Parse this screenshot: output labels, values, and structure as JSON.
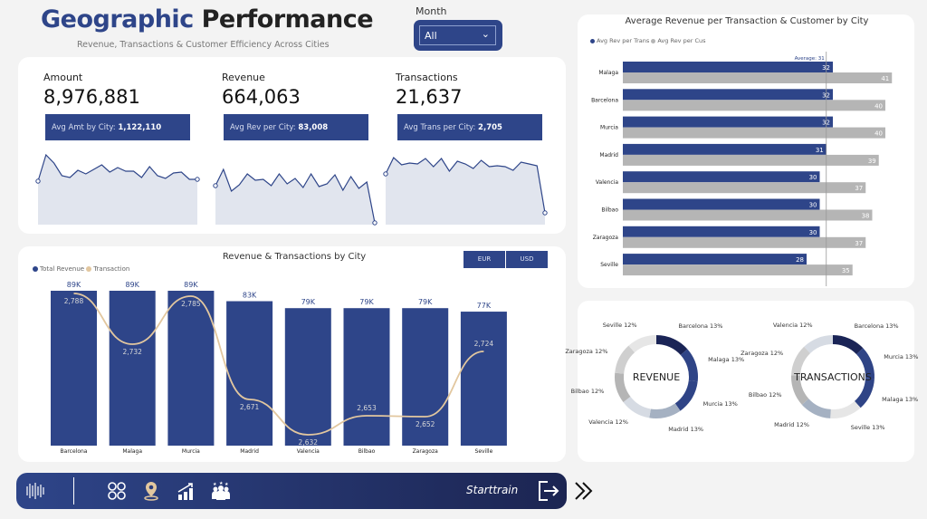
{
  "header": {
    "title_part1": "Geographic",
    "title_part2": "Performance",
    "subtitle": "Revenue, Transactions & Customer Efficiency Across Cities"
  },
  "filter": {
    "label": "Month",
    "value": "All"
  },
  "kpis": [
    {
      "label": "Amount",
      "value": "8,976,881",
      "sub_label": "Avg Amt by City:",
      "sub_value": "1,122,110"
    },
    {
      "label": "Revenue",
      "value": "664,063",
      "sub_label": "Avg Rev per City:",
      "sub_value": "83,008"
    },
    {
      "label": "Transactions",
      "value": "21,637",
      "sub_label": "Avg Trans per City:",
      "sub_value": "2,705"
    }
  ],
  "colors": {
    "primary": "#2e4589",
    "line": "#e2c79f",
    "gray": "#b5b5b5",
    "dark": "#1a2456"
  },
  "chart_data": [
    {
      "type": "bar",
      "title": "Revenue & Transactions by City",
      "legend": [
        "Total Revenue",
        "Transaction"
      ],
      "legend_position": "top-left",
      "categories": [
        "Barcelona",
        "Malaga",
        "Murcia",
        "Madrid",
        "Valencia",
        "Bilbao",
        "Zaragoza",
        "Seville"
      ],
      "series": [
        {
          "name": "Total Revenue",
          "type": "bar",
          "values": [
            89,
            89,
            89,
            83,
            79,
            79,
            79,
            77
          ],
          "labels": [
            "89K",
            "89K",
            "89K",
            "83K",
            "79K",
            "79K",
            "79K",
            "77K"
          ]
        },
        {
          "name": "Transaction",
          "type": "line",
          "values": [
            2788,
            2732,
            2785,
            2671,
            2632,
            2653,
            2652,
            2724
          ],
          "labels": [
            "2,788",
            "2,732",
            "2,785",
            "2,671",
            "2,632",
            "2,653",
            "2,652",
            "2,724"
          ]
        }
      ],
      "buttons": [
        "EUR",
        "USD"
      ]
    },
    {
      "type": "bar",
      "orientation": "horizontal",
      "title": "Average Revenue per Transaction & Customer by City",
      "legend": [
        "Avg Rev per Trans",
        "Avg Rev per Cus"
      ],
      "legend_position": "top-left",
      "categories": [
        "Malaga",
        "Barcelona",
        "Murcia",
        "Madrid",
        "Valencia",
        "Bilbao",
        "Zaragoza",
        "Seville"
      ],
      "series": [
        {
          "name": "Avg Rev per Trans",
          "values": [
            32,
            32,
            32,
            31,
            30,
            30,
            30,
            28
          ]
        },
        {
          "name": "Avg Rev per Cus",
          "values": [
            41,
            40,
            40,
            39,
            37,
            38,
            37,
            35
          ]
        }
      ],
      "reference_line": {
        "label": "Average: 31",
        "value": 31
      }
    },
    {
      "type": "pie",
      "center_label": "REVENUE",
      "slices": [
        {
          "label": "Barcelona",
          "pct": "13%",
          "value": 89
        },
        {
          "label": "Malaga",
          "pct": "13%",
          "value": 89
        },
        {
          "label": "Murcia",
          "pct": "13%",
          "value": 89
        },
        {
          "label": "Madrid",
          "pct": "13%",
          "value": 83
        },
        {
          "label": "Valencia",
          "pct": "12%",
          "value": 79
        },
        {
          "label": "Bilbao",
          "pct": "12%",
          "value": 79
        },
        {
          "label": "Zaragoza",
          "pct": "12%",
          "value": 79
        },
        {
          "label": "Seville",
          "pct": "12%",
          "value": 77
        }
      ]
    },
    {
      "type": "pie",
      "center_label": "TRANSACTIONS",
      "slices": [
        {
          "label": "Barcelona",
          "pct": "13%",
          "value": 2788
        },
        {
          "label": "Murcia",
          "pct": "13%",
          "value": 2785
        },
        {
          "label": "Malaga",
          "pct": "13%",
          "value": 2732
        },
        {
          "label": "Seville",
          "pct": "13%",
          "value": 2724
        },
        {
          "label": "Madrid",
          "pct": "12%",
          "value": 2671
        },
        {
          "label": "Bilbao",
          "pct": "12%",
          "value": 2653
        },
        {
          "label": "Zaragoza",
          "pct": "12%",
          "value": 2652
        },
        {
          "label": "Valencia",
          "pct": "12%",
          "value": 2632
        }
      ]
    }
  ],
  "nav": {
    "brand": "Starttrain",
    "icons": [
      "logo-icon",
      "overview-icon",
      "location-icon",
      "growth-chart-icon",
      "customers-icon"
    ],
    "exit_icon": "exit-icon",
    "next_icon": "double-chevron-icon"
  }
}
